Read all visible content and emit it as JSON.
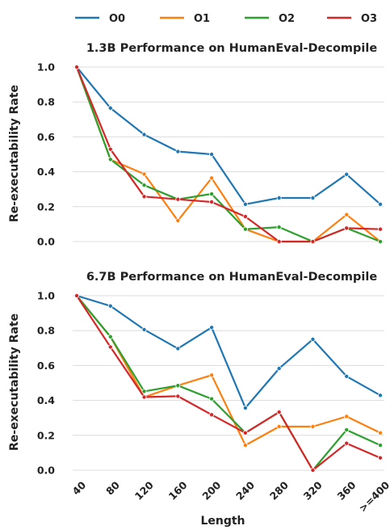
{
  "chart_data": [
    {
      "type": "line",
      "title": "1.3B Performance on HumanEval-Decompile",
      "xlabel": "",
      "ylabel": "Re-executability Rate",
      "ylim": [
        0,
        1.0
      ],
      "yticks": [
        "0.0",
        "0.2",
        "0.4",
        "0.6",
        "0.8",
        "1.0"
      ],
      "categories": [
        "40",
        "80",
        "120",
        "160",
        "200",
        "240",
        "280",
        "320",
        "360",
        ">=400"
      ],
      "grid": true,
      "series": [
        {
          "name": "O0",
          "color": "#1f77b4",
          "values": [
            1.0,
            0.765,
            0.613,
            0.516,
            0.5,
            0.214,
            0.25,
            0.25,
            0.385,
            0.214
          ]
        },
        {
          "name": "O1",
          "color": "#ff7f0e",
          "values": [
            1.0,
            0.47,
            0.387,
            0.12,
            0.364,
            0.071,
            0.0,
            0.0,
            0.154,
            0.0
          ]
        },
        {
          "name": "O2",
          "color": "#2ca02c",
          "values": [
            1.0,
            0.471,
            0.323,
            0.242,
            0.273,
            0.071,
            0.083,
            0.0,
            0.077,
            0.0
          ]
        },
        {
          "name": "O3",
          "color": "#d62728",
          "values": [
            1.0,
            0.529,
            0.258,
            0.242,
            0.227,
            0.143,
            0.0,
            0.0,
            0.077,
            0.071
          ]
        }
      ]
    },
    {
      "type": "line",
      "title": "6.7B Performance on HumanEval-Decompile",
      "xlabel": "Length",
      "ylabel": "Re-executability Rate",
      "ylim": [
        0,
        1.0
      ],
      "yticks": [
        "0.0",
        "0.2",
        "0.4",
        "0.6",
        "0.8",
        "1.0"
      ],
      "categories": [
        "40",
        "80",
        "120",
        "160",
        "200",
        "240",
        "280",
        "320",
        "360",
        ">=400"
      ],
      "grid": true,
      "series": [
        {
          "name": "O0",
          "color": "#1f77b4",
          "values": [
            1.0,
            0.941,
            0.806,
            0.697,
            0.818,
            0.357,
            0.583,
            0.75,
            0.538,
            0.429
          ]
        },
        {
          "name": "O1",
          "color": "#ff7f0e",
          "values": [
            1.0,
            0.765,
            0.419,
            0.485,
            0.545,
            0.143,
            0.25,
            0.25,
            0.308,
            0.214
          ]
        },
        {
          "name": "O2",
          "color": "#2ca02c",
          "values": [
            1.0,
            0.765,
            0.452,
            0.485,
            0.409,
            0.214,
            0.333,
            0.0,
            0.231,
            0.143
          ]
        },
        {
          "name": "O3",
          "color": "#d62728",
          "values": [
            1.0,
            0.706,
            0.419,
            0.424,
            0.318,
            0.214,
            0.333,
            0.0,
            0.154,
            0.071
          ]
        }
      ]
    }
  ],
  "legend": {
    "placement": "top-center",
    "items": [
      {
        "label": "O0",
        "color": "#1f77b4"
      },
      {
        "label": "O1",
        "color": "#ff7f0e"
      },
      {
        "label": "O2",
        "color": "#2ca02c"
      },
      {
        "label": "O3",
        "color": "#d62728"
      }
    ]
  }
}
